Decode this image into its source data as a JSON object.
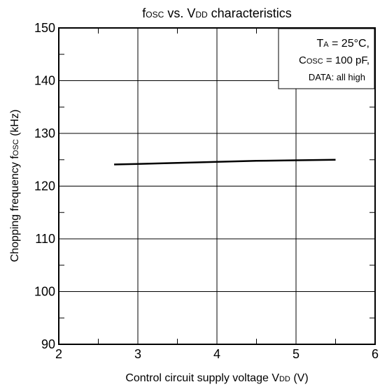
{
  "chart_data": {
    "type": "line",
    "title": {
      "prefix": "f",
      "prefix_sub": "OSC",
      "middle": " vs. V",
      "middle_sub": "DD",
      "suffix": " characteristics"
    },
    "xlabel": {
      "prefix": "Control circuit supply voltage V",
      "sub": "DD",
      "suffix": " (V)"
    },
    "ylabel": {
      "prefix": "Chopping frequency f",
      "sub": "OSC",
      "suffix": " (kHz)"
    },
    "xlim": [
      2,
      6
    ],
    "ylim": [
      90,
      150
    ],
    "x_ticks": [
      2,
      3,
      4,
      5,
      6
    ],
    "y_ticks": [
      90,
      100,
      110,
      120,
      130,
      140,
      150
    ],
    "grid": true,
    "series": [
      {
        "x": [
          2.7,
          3.0,
          3.5,
          4.0,
          4.5,
          5.0,
          5.5
        ],
        "y": [
          124.1,
          124.2,
          124.4,
          124.6,
          124.8,
          124.9,
          125.0
        ]
      }
    ],
    "annotation": {
      "line1": {
        "prefix": "T",
        "sub": "A",
        "suffix": " = 25°C,"
      },
      "line2": {
        "prefix": "C",
        "sub": "OSC",
        "suffix": " = 100 pF,"
      },
      "line3": "DATA:  all high"
    }
  }
}
